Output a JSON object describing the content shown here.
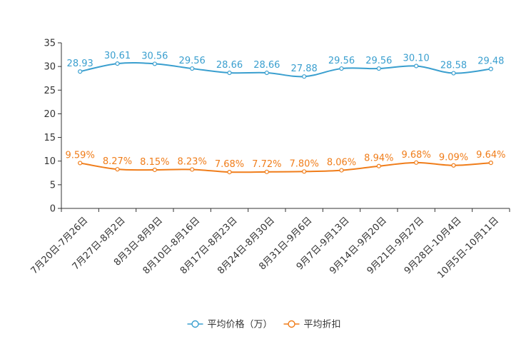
{
  "chart_data": {
    "type": "line",
    "title": "",
    "xlabel": "",
    "ylabel": "",
    "ylim": [
      0,
      35
    ],
    "yticks": [
      "0",
      "5",
      "10",
      "15",
      "20",
      "25",
      "30",
      "35"
    ],
    "grid": false,
    "legend_position": "bottom-center",
    "categories": [
      "7月20日-7月26日",
      "7月27日-8月2日",
      "8月3日-8月9日",
      "8月10日-8月16日",
      "8月17日-8月23日",
      "8月24日-8月30日",
      "8月31日-9月6日",
      "9月7日-9月13日",
      "9月14日-9月20日",
      "9月21日-9月27日",
      "9月28日-10月4日",
      "10月5日-10月11日"
    ],
    "series": [
      {
        "name": "平均价格（万）",
        "color": "#3a9fcf",
        "values": [
          28.93,
          30.61,
          30.56,
          29.56,
          28.66,
          28.66,
          27.88,
          29.56,
          29.56,
          30.1,
          28.58,
          29.48
        ],
        "labels": [
          "28.93",
          "30.61",
          "30.56",
          "29.56",
          "28.66",
          "28.66",
          "27.88",
          "29.56",
          "29.56",
          "30.10",
          "28.58",
          "29.48"
        ]
      },
      {
        "name": "平均折扣",
        "color": "#f07d1a",
        "values": [
          9.59,
          8.27,
          8.15,
          8.23,
          7.68,
          7.72,
          7.8,
          8.06,
          8.94,
          9.68,
          9.09,
          9.64
        ],
        "labels": [
          "9.59%",
          "8.27%",
          "8.15%",
          "8.23%",
          "7.68%",
          "7.72%",
          "7.80%",
          "8.06%",
          "8.94%",
          "9.68%",
          "9.09%",
          "9.64%"
        ]
      }
    ]
  }
}
